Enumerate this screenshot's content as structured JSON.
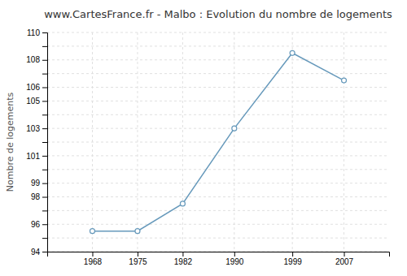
{
  "chart_data": {
    "type": "line",
    "title": "www.CartesFrance.fr - Malbo : Evolution du nombre de logements",
    "ylabel": "Nombre de logements",
    "x": [
      1968,
      1975,
      1982,
      1990,
      1999,
      2007
    ],
    "values": [
      95.5,
      95.5,
      97.5,
      103.0,
      108.5,
      106.5
    ],
    "color": "#6699bb",
    "marker": "circle",
    "xlim": [
      1961,
      2014
    ],
    "xticks": [
      1968,
      1975,
      1982,
      1990,
      1999,
      2007
    ],
    "ylim": [
      94,
      110
    ],
    "yticks": [
      94,
      {
        "value": 95,
        "label": null
      },
      96,
      {
        "value": 97,
        "label": null
      },
      98,
      99,
      {
        "value": 100,
        "label": null
      },
      101,
      {
        "value": 102,
        "label": null
      },
      103,
      {
        "value": 104,
        "label": null
      },
      105,
      106,
      {
        "value": 107,
        "label": null
      },
      108,
      {
        "value": 109,
        "label": null
      },
      110
    ],
    "grid": true
  }
}
